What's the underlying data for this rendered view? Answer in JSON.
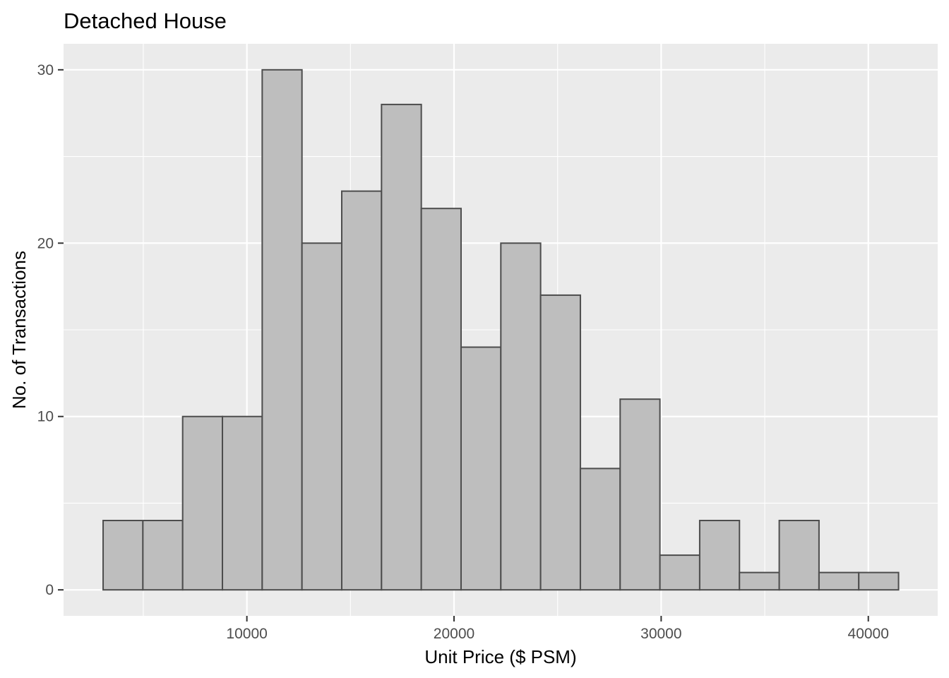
{
  "chart_data": {
    "type": "bar",
    "title": "Detached House",
    "xlabel": "Unit Price ($ PSM)",
    "ylabel": "No. of Transactions",
    "bin_width": 1920,
    "bin_edges": [
      3060,
      4980,
      6900,
      8820,
      10740,
      12660,
      14580,
      16500,
      18420,
      20340,
      22260,
      24180,
      26100,
      28020,
      29940,
      31860,
      33780,
      35700,
      37620,
      39540,
      41460
    ],
    "values": [
      4,
      4,
      10,
      10,
      30,
      20,
      23,
      28,
      22,
      14,
      20,
      17,
      7,
      11,
      2,
      4,
      1,
      4,
      1,
      1
    ],
    "xlim": [
      1150,
      43350
    ],
    "ylim": [
      -1.5,
      31.5
    ],
    "x_ticks": [
      10000,
      20000,
      30000,
      40000
    ],
    "x_tick_labels": [
      "10000",
      "20000",
      "30000",
      "40000"
    ],
    "y_ticks": [
      0,
      10,
      20,
      30
    ],
    "y_tick_labels": [
      "0",
      "10",
      "20",
      "30"
    ],
    "grid": true,
    "colors": {
      "panel_background": "#ebebeb",
      "grid": "#ffffff",
      "bar_fill": "#bebebe",
      "bar_stroke": "#4d4d4d",
      "tick_text": "#4d4d4d",
      "axis_text": "#000000"
    }
  }
}
